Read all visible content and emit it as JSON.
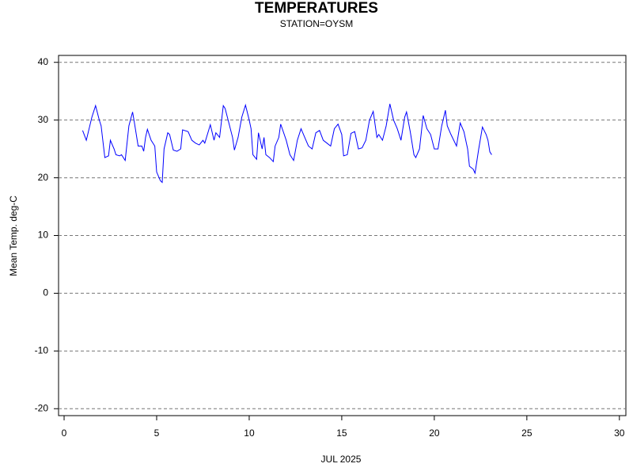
{
  "chart_data": {
    "type": "line",
    "title": "TEMPERATURES",
    "subtitle": "STATION=OYSM",
    "x_label": "JUL 2025",
    "y_label": "Mean Temp. deg-C",
    "xlim": [
      -0.3,
      30.35
    ],
    "ylim": [
      -21.2,
      41.2
    ],
    "xticks": [
      0,
      5,
      10,
      15,
      20,
      25,
      30
    ],
    "yticks": [
      -20,
      -10,
      0,
      10,
      20,
      30,
      40
    ],
    "grid": true,
    "series": [
      {
        "color": "#0000ff",
        "x": [
          1.0,
          1.2,
          1.5,
          1.7,
          1.9,
          2.0,
          2.2,
          2.4,
          2.5,
          2.7,
          2.8,
          3.0,
          3.1,
          3.3,
          3.5,
          3.7,
          3.8,
          4.0,
          4.2,
          4.3,
          4.4,
          4.5,
          4.7,
          4.9,
          5.0,
          5.2,
          5.3,
          5.4,
          5.6,
          5.7,
          5.9,
          6.1,
          6.3,
          6.4,
          6.7,
          6.9,
          7.1,
          7.3,
          7.5,
          7.6,
          7.9,
          8.1,
          8.2,
          8.4,
          8.6,
          8.7,
          8.9,
          9.1,
          9.2,
          9.4,
          9.6,
          9.8,
          10.0,
          10.1,
          10.2,
          10.4,
          10.5,
          10.7,
          10.8,
          10.9,
          11.1,
          11.3,
          11.4,
          11.6,
          11.7,
          12.0,
          12.2,
          12.4,
          12.6,
          12.8,
          13.0,
          13.2,
          13.4,
          13.6,
          13.8,
          14.0,
          14.2,
          14.4,
          14.6,
          14.8,
          15.0,
          15.1,
          15.3,
          15.5,
          15.7,
          15.9,
          16.1,
          16.3,
          16.5,
          16.7,
          16.9,
          17.0,
          17.2,
          17.4,
          17.6,
          17.8,
          18.0,
          18.2,
          18.4,
          18.5,
          18.7,
          18.9,
          19.0,
          19.2,
          19.4,
          19.6,
          19.8,
          20.0,
          20.2,
          20.4,
          20.6,
          20.7,
          20.9,
          21.2,
          21.4,
          21.6,
          21.8,
          21.9,
          22.1,
          22.2,
          22.4,
          22.6,
          22.8,
          22.9,
          23.0,
          23.1
        ],
        "values": [
          28.2,
          26.5,
          30.5,
          32.5,
          30,
          29,
          23.5,
          23.8,
          26.5,
          25,
          24,
          23.8,
          24,
          23,
          29,
          31.4,
          29.5,
          25.5,
          25.5,
          24.6,
          27,
          28.4,
          26.5,
          25.5,
          21,
          19.5,
          19.2,
          25,
          27.8,
          27.5,
          24.8,
          24.6,
          25,
          28.3,
          28,
          26.5,
          26,
          25.7,
          26.5,
          26,
          29.2,
          26.5,
          27.8,
          27,
          32.5,
          32,
          29.5,
          27,
          24.8,
          27,
          30.5,
          32.6,
          30,
          28.5,
          24,
          23.2,
          27.8,
          25,
          27,
          24,
          23.5,
          22.8,
          25.5,
          27,
          29.3,
          26.5,
          24,
          23,
          26.5,
          28.5,
          27,
          25.5,
          25,
          27.8,
          28.2,
          26.5,
          26,
          25.5,
          28.5,
          29.3,
          27.5,
          23.8,
          24,
          27.7,
          28,
          25,
          25.2,
          26.5,
          30,
          31.5,
          27,
          27.5,
          26.5,
          29,
          32.8,
          30,
          28.5,
          26.5,
          30.5,
          31.4,
          28,
          24,
          23.5,
          25,
          30.8,
          28.5,
          27.5,
          25,
          25,
          29,
          31.7,
          29,
          27.5,
          25.5,
          29.5,
          28,
          25,
          22,
          21.5,
          20.8,
          25,
          28.8,
          27.5,
          26.5,
          24.5,
          24
        ]
      }
    ]
  }
}
